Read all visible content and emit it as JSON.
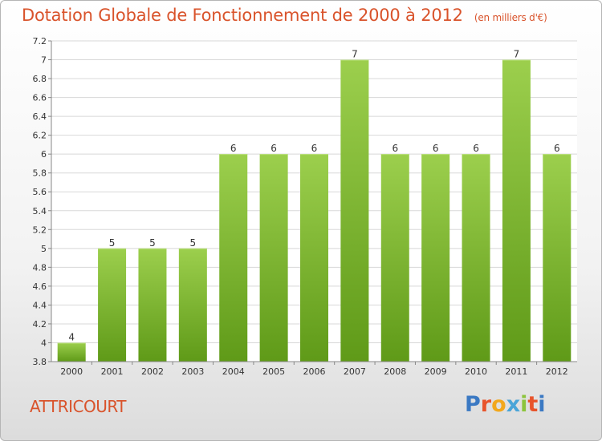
{
  "title": "Dotation Globale de Fonctionnement de 2000 à 2012",
  "unit_note": "(en milliers d'€)",
  "commune_name": "ATTRICOURT",
  "logo": {
    "text": "Proxiti",
    "letter_colors": [
      "#3b79c3",
      "#e8542b",
      "#f2a81d",
      "#4aa5d8",
      "#8cc43c",
      "#e8542b",
      "#3b79c3"
    ]
  },
  "colors": {
    "bar_top": "#9ccf4d",
    "bar_bottom": "#5f9a18",
    "text_accent": "#d9532b"
  },
  "chart_data": {
    "type": "bar",
    "title": "Dotation Globale de Fonctionnement de 2000 à 2012",
    "categories": [
      "2000",
      "2001",
      "2002",
      "2003",
      "2004",
      "2005",
      "2006",
      "2007",
      "2008",
      "2009",
      "2010",
      "2011",
      "2012"
    ],
    "values": [
      4,
      5,
      5,
      5,
      6,
      6,
      6,
      7,
      6,
      6,
      6,
      7,
      6
    ],
    "data_labels": [
      "4",
      "5",
      "5",
      "5",
      "6",
      "6",
      "6",
      "7",
      "6",
      "6",
      "6",
      "7",
      "6"
    ],
    "ylim": [
      3.8,
      7.2
    ],
    "yticks": [
      3.8,
      4,
      4.2,
      4.4,
      4.6,
      4.8,
      5,
      5.2,
      5.4,
      5.6,
      5.8,
      6,
      6.2,
      6.4,
      6.6,
      6.8,
      7,
      7.2
    ],
    "ytick_labels": [
      "3.8",
      "4",
      "4.2",
      "4.4",
      "4.6",
      "4.8",
      "5",
      "5.2",
      "5.4",
      "5.6",
      "5.8",
      "6",
      "6.2",
      "6.4",
      "6.6",
      "6.8",
      "7",
      "7.2"
    ],
    "grid": true
  }
}
